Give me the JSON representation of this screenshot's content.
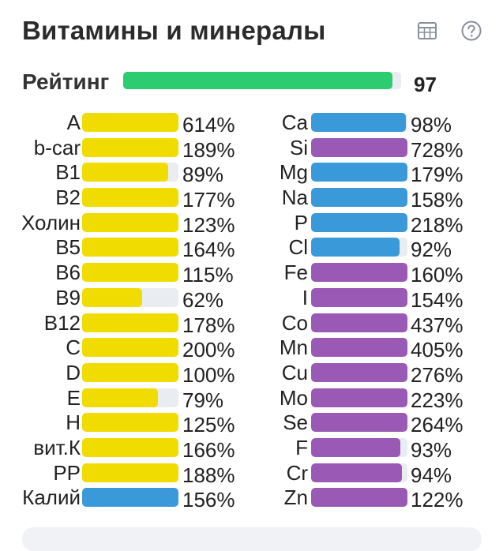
{
  "header": {
    "title": "Витамины и минералы",
    "table_icon": "table-icon",
    "help_icon": "question-circle-icon"
  },
  "rating": {
    "label": "Рейтинг",
    "value": "97",
    "fill_fraction": 0.97,
    "color": "#2ecc71"
  },
  "colors": {
    "vitamin": "#f0dc00",
    "blue": "#3a9ad9",
    "purple": "#9b59b6",
    "track": "#e9edf1"
  },
  "vitamins": [
    {
      "name": "A",
      "pct": "614%",
      "fill": 1.0,
      "color": "vitamin"
    },
    {
      "name": "b-car",
      "pct": "189%",
      "fill": 1.0,
      "color": "vitamin"
    },
    {
      "name": "B1",
      "pct": "89%",
      "fill": 0.89,
      "color": "vitamin"
    },
    {
      "name": "B2",
      "pct": "177%",
      "fill": 1.0,
      "color": "vitamin"
    },
    {
      "name": "Холин",
      "pct": "123%",
      "fill": 1.0,
      "color": "vitamin"
    },
    {
      "name": "B5",
      "pct": "164%",
      "fill": 1.0,
      "color": "vitamin"
    },
    {
      "name": "B6",
      "pct": "115%",
      "fill": 1.0,
      "color": "vitamin"
    },
    {
      "name": "B9",
      "pct": "62%",
      "fill": 0.62,
      "color": "vitamin"
    },
    {
      "name": "B12",
      "pct": "178%",
      "fill": 1.0,
      "color": "vitamin"
    },
    {
      "name": "C",
      "pct": "200%",
      "fill": 1.0,
      "color": "vitamin"
    },
    {
      "name": "D",
      "pct": "100%",
      "fill": 1.0,
      "color": "vitamin"
    },
    {
      "name": "E",
      "pct": "79%",
      "fill": 0.79,
      "color": "vitamin"
    },
    {
      "name": "H",
      "pct": "125%",
      "fill": 1.0,
      "color": "vitamin"
    },
    {
      "name": "вит.К",
      "pct": "166%",
      "fill": 1.0,
      "color": "vitamin"
    },
    {
      "name": "PP",
      "pct": "188%",
      "fill": 1.0,
      "color": "vitamin"
    },
    {
      "name": "Калий",
      "pct": "156%",
      "fill": 1.0,
      "color": "blue"
    }
  ],
  "minerals": [
    {
      "name": "Ca",
      "pct": "98%",
      "fill": 0.98,
      "color": "blue"
    },
    {
      "name": "Si",
      "pct": "728%",
      "fill": 1.0,
      "color": "purple"
    },
    {
      "name": "Mg",
      "pct": "179%",
      "fill": 1.0,
      "color": "blue"
    },
    {
      "name": "Na",
      "pct": "158%",
      "fill": 1.0,
      "color": "blue"
    },
    {
      "name": "P",
      "pct": "218%",
      "fill": 1.0,
      "color": "blue"
    },
    {
      "name": "Cl",
      "pct": "92%",
      "fill": 0.92,
      "color": "blue"
    },
    {
      "name": "Fe",
      "pct": "160%",
      "fill": 1.0,
      "color": "purple"
    },
    {
      "name": "I",
      "pct": "154%",
      "fill": 1.0,
      "color": "purple"
    },
    {
      "name": "Co",
      "pct": "437%",
      "fill": 1.0,
      "color": "purple"
    },
    {
      "name": "Mn",
      "pct": "405%",
      "fill": 1.0,
      "color": "purple"
    },
    {
      "name": "Cu",
      "pct": "276%",
      "fill": 1.0,
      "color": "purple"
    },
    {
      "name": "Mo",
      "pct": "223%",
      "fill": 1.0,
      "color": "purple"
    },
    {
      "name": "Se",
      "pct": "264%",
      "fill": 1.0,
      "color": "purple"
    },
    {
      "name": "F",
      "pct": "93%",
      "fill": 0.93,
      "color": "purple"
    },
    {
      "name": "Cr",
      "pct": "94%",
      "fill": 0.94,
      "color": "purple"
    },
    {
      "name": "Zn",
      "pct": "122%",
      "fill": 1.0,
      "color": "purple"
    }
  ]
}
